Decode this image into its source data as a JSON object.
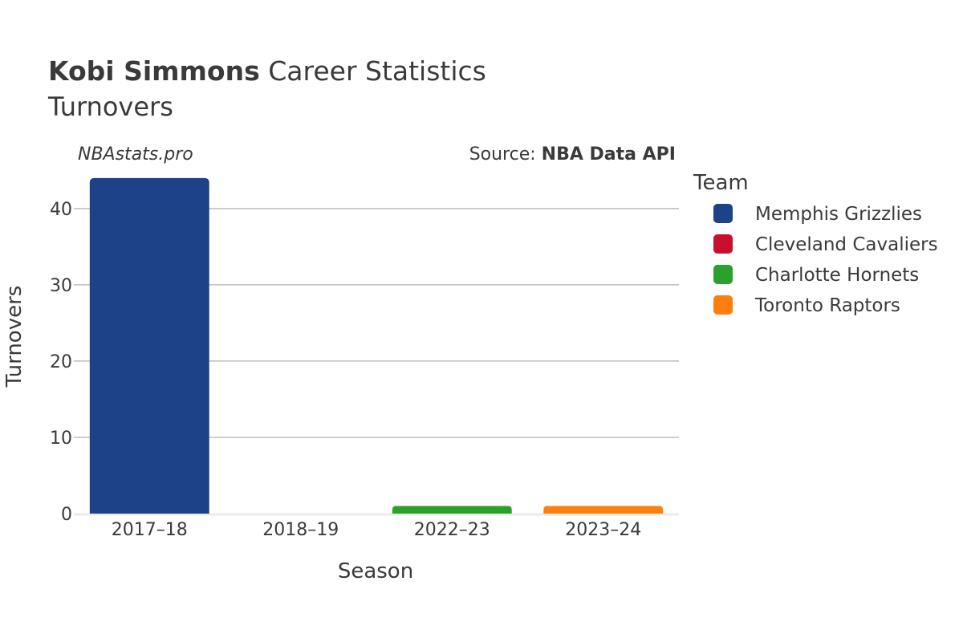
{
  "title": {
    "player_name": "Kobi Simmons",
    "title_rest": " Career Statistics",
    "subtitle": "Turnovers"
  },
  "credit": {
    "site": "NBAstats.pro",
    "source_prefix": "Source: ",
    "source_name": "NBA Data API"
  },
  "legend": {
    "title": "Team",
    "placement": "right",
    "items": [
      {
        "label": "Memphis Grizzlies",
        "color": "#1d4287"
      },
      {
        "label": "Cleveland Cavaliers",
        "color": "#c8102e"
      },
      {
        "label": "Charlotte Hornets",
        "color": "#2ca02c"
      },
      {
        "label": "Toronto Raptors",
        "color": "#ff7f0e"
      }
    ]
  },
  "chart_data": {
    "type": "bar",
    "title": "Kobi Simmons Career Statistics",
    "subtitle": "Turnovers",
    "xlabel": "Season",
    "ylabel": "Turnovers",
    "categories": [
      "2017–18",
      "2018–19",
      "2022–23",
      "2023–24"
    ],
    "bars": [
      {
        "season": "2017–18",
        "team": "Memphis Grizzlies",
        "value": 44,
        "color": "#1d4287"
      },
      {
        "season": "2018–19",
        "team": "Cleveland Cavaliers",
        "value": 0,
        "color": "#c8102e"
      },
      {
        "season": "2022–23",
        "team": "Charlotte Hornets",
        "value": 1,
        "color": "#2ca02c"
      },
      {
        "season": "2023–24",
        "team": "Toronto Raptors",
        "value": 1,
        "color": "#ff7f0e"
      }
    ],
    "yticks": [
      0,
      10,
      20,
      30,
      40
    ],
    "ylim": [
      0,
      46.3
    ],
    "grid": true
  }
}
